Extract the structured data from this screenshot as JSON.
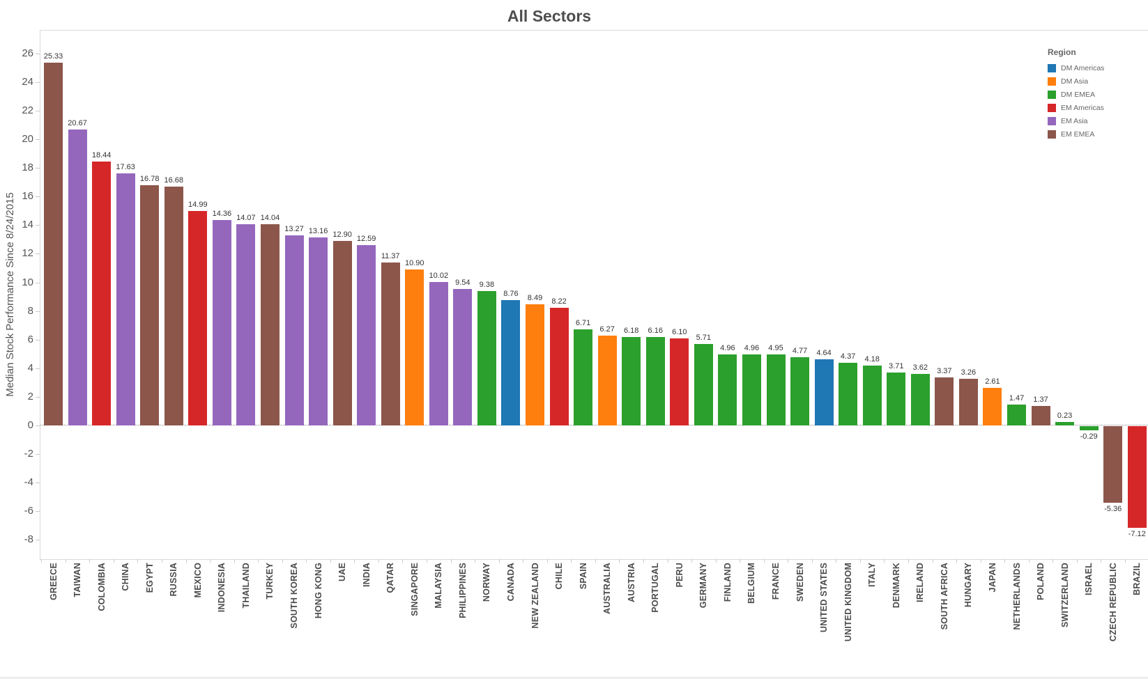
{
  "chart_data": {
    "type": "bar",
    "title": "All Sectors",
    "ylabel": "Median Stock Performance Since 8/24/2015",
    "xlabel": "",
    "ylim": [
      -9.35,
      27.6
    ],
    "yticks": [
      26,
      24,
      22,
      20,
      18,
      16,
      14,
      12,
      10,
      8,
      6,
      4,
      2,
      0,
      -2,
      -4,
      -6,
      -8
    ],
    "grid": false,
    "zero_line": "dotted",
    "legend": {
      "title": "Region",
      "position": "top-right-inside",
      "entries": [
        {
          "label": "DM Americas",
          "color": "#1f77b4"
        },
        {
          "label": "DM Asia",
          "color": "#ff7f0e"
        },
        {
          "label": "DM EMEA",
          "color": "#2ca02c"
        },
        {
          "label": "EM Americas",
          "color": "#d62728"
        },
        {
          "label": "EM Asia",
          "color": "#9467bd"
        },
        {
          "label": "EM EMEA",
          "color": "#8c564b"
        }
      ]
    },
    "region_colors": {
      "DM Americas": "#1f77b4",
      "DM Asia": "#ff7f0e",
      "DM EMEA": "#2ca02c",
      "EM Americas": "#d62728",
      "EM Asia": "#9467bd",
      "EM EMEA": "#8c564b"
    },
    "bars": [
      {
        "country": "GREECE",
        "value": 25.33,
        "region": "EM EMEA"
      },
      {
        "country": "TAIWAN",
        "value": 20.67,
        "region": "EM Asia"
      },
      {
        "country": "COLOMBIA",
        "value": 18.44,
        "region": "EM Americas"
      },
      {
        "country": "CHINA",
        "value": 17.63,
        "region": "EM Asia"
      },
      {
        "country": "EGYPT",
        "value": 16.78,
        "region": "EM EMEA"
      },
      {
        "country": "RUSSIA",
        "value": 16.68,
        "region": "EM EMEA"
      },
      {
        "country": "MEXICO",
        "value": 14.99,
        "region": "EM Americas"
      },
      {
        "country": "INDONESIA",
        "value": 14.36,
        "region": "EM Asia"
      },
      {
        "country": "THAILAND",
        "value": 14.07,
        "region": "EM Asia"
      },
      {
        "country": "TURKEY",
        "value": 14.04,
        "region": "EM EMEA"
      },
      {
        "country": "SOUTH KOREA",
        "value": 13.27,
        "region": "EM Asia"
      },
      {
        "country": "HONG KONG",
        "value": 13.16,
        "region": "EM Asia"
      },
      {
        "country": "UAE",
        "value": 12.9,
        "region": "EM EMEA"
      },
      {
        "country": "INDIA",
        "value": 12.59,
        "region": "EM Asia"
      },
      {
        "country": "QATAR",
        "value": 11.37,
        "region": "EM EMEA"
      },
      {
        "country": "SINGAPORE",
        "value": 10.9,
        "region": "DM Asia"
      },
      {
        "country": "MALAYSIA",
        "value": 10.02,
        "region": "EM Asia"
      },
      {
        "country": "PHILIPPINES",
        "value": 9.54,
        "region": "EM Asia"
      },
      {
        "country": "NORWAY",
        "value": 9.38,
        "region": "DM EMEA"
      },
      {
        "country": "CANADA",
        "value": 8.76,
        "region": "DM Americas"
      },
      {
        "country": "NEW ZEALAND",
        "value": 8.49,
        "region": "DM Asia"
      },
      {
        "country": "CHILE",
        "value": 8.22,
        "region": "EM Americas"
      },
      {
        "country": "SPAIN",
        "value": 6.71,
        "region": "DM EMEA"
      },
      {
        "country": "AUSTRALIA",
        "value": 6.27,
        "region": "DM Asia"
      },
      {
        "country": "AUSTRIA",
        "value": 6.18,
        "region": "DM EMEA"
      },
      {
        "country": "PORTUGAL",
        "value": 6.16,
        "region": "DM EMEA"
      },
      {
        "country": "PERU",
        "value": 6.1,
        "region": "EM Americas"
      },
      {
        "country": "GERMANY",
        "value": 5.71,
        "region": "DM EMEA"
      },
      {
        "country": "FINLAND",
        "value": 4.96,
        "region": "DM EMEA"
      },
      {
        "country": "BELGIUM",
        "value": 4.96,
        "region": "DM EMEA"
      },
      {
        "country": "FRANCE",
        "value": 4.95,
        "region": "DM EMEA"
      },
      {
        "country": "SWEDEN",
        "value": 4.77,
        "region": "DM EMEA"
      },
      {
        "country": "UNITED STATES",
        "value": 4.64,
        "region": "DM Americas"
      },
      {
        "country": "UNITED KINGDOM",
        "value": 4.37,
        "region": "DM EMEA"
      },
      {
        "country": "ITALY",
        "value": 4.18,
        "region": "DM EMEA"
      },
      {
        "country": "DENMARK",
        "value": 3.71,
        "region": "DM EMEA"
      },
      {
        "country": "IRELAND",
        "value": 3.62,
        "region": "DM EMEA"
      },
      {
        "country": "SOUTH AFRICA",
        "value": 3.37,
        "region": "EM EMEA"
      },
      {
        "country": "HUNGARY",
        "value": 3.26,
        "region": "EM EMEA"
      },
      {
        "country": "JAPAN",
        "value": 2.61,
        "region": "DM Asia"
      },
      {
        "country": "NETHERLANDS",
        "value": 1.47,
        "region": "DM EMEA"
      },
      {
        "country": "POLAND",
        "value": 1.37,
        "region": "EM EMEA"
      },
      {
        "country": "SWITZERLAND",
        "value": 0.23,
        "region": "DM EMEA"
      },
      {
        "country": "ISRAEL",
        "value": -0.29,
        "region": "DM EMEA"
      },
      {
        "country": "CZECH REPUBLIC",
        "value": -5.36,
        "region": "EM EMEA"
      },
      {
        "country": "BRAZIL",
        "value": -7.12,
        "region": "EM Americas"
      }
    ]
  }
}
